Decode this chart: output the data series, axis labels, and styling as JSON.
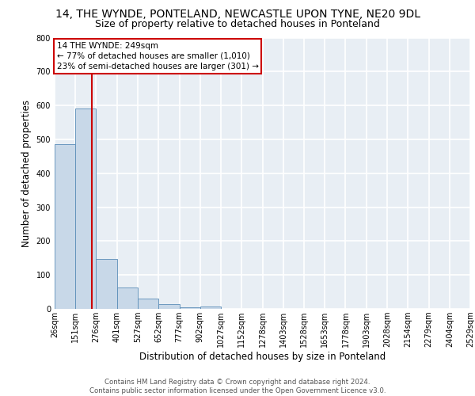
{
  "title_line1": "14, THE WYNDE, PONTELAND, NEWCASTLE UPON TYNE, NE20 9DL",
  "title_line2": "Size of property relative to detached houses in Ponteland",
  "xlabel": "Distribution of detached houses by size in Ponteland",
  "ylabel": "Number of detached properties",
  "bar_color": "#c8d8e8",
  "bar_edge_color": "#5b8db8",
  "background_color": "#e8eef4",
  "grid_color": "#ffffff",
  "bin_edges": [
    26,
    151,
    276,
    401,
    527,
    652,
    777,
    902,
    1027,
    1152,
    1278,
    1403,
    1528,
    1653,
    1778,
    1903,
    2028,
    2154,
    2279,
    2404,
    2529
  ],
  "bar_heights": [
    487,
    591,
    148,
    62,
    30,
    13,
    5,
    8,
    0,
    0,
    0,
    0,
    0,
    0,
    0,
    0,
    0,
    0,
    0,
    0
  ],
  "property_size": 249,
  "red_line_color": "#cc0000",
  "annotation_text": "14 THE WYNDE: 249sqm\n← 77% of detached houses are smaller (1,010)\n23% of semi-detached houses are larger (301) →",
  "annotation_box_color": "#ffffff",
  "annotation_box_edge": "#cc0000",
  "ylim": [
    0,
    800
  ],
  "yticks": [
    0,
    100,
    200,
    300,
    400,
    500,
    600,
    700,
    800
  ],
  "footer_line1": "Contains HM Land Registry data © Crown copyright and database right 2024.",
  "footer_line2": "Contains public sector information licensed under the Open Government Licence v3.0.",
  "title_fontsize": 10,
  "subtitle_fontsize": 9,
  "tick_fontsize": 7,
  "ylabel_fontsize": 8.5,
  "xlabel_fontsize": 8.5,
  "annotation_fontsize": 7.5,
  "footer_fontsize": 6.2
}
